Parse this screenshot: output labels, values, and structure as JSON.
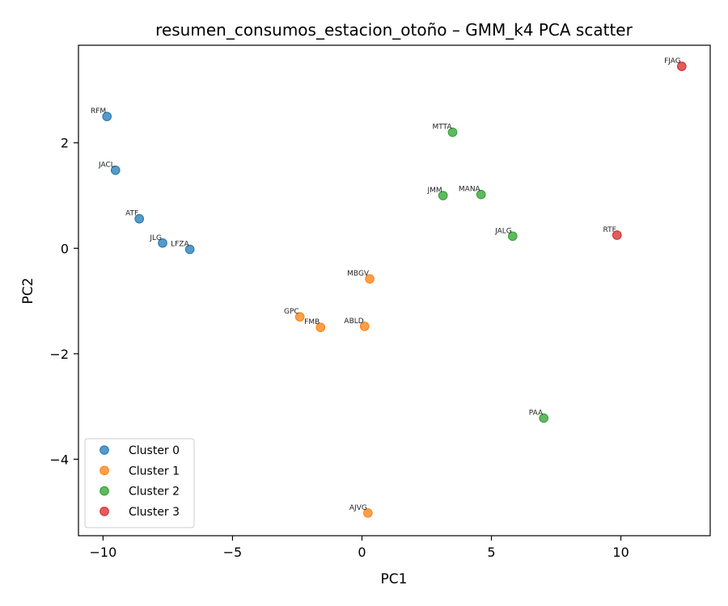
{
  "chart_data": {
    "type": "scatter",
    "title": "resumen_consumos_estacion_otoño – GMM_k4 PCA scatter",
    "xlabel": "PC1",
    "ylabel": "PC2",
    "xlim": [
      -10.95,
      13.45
    ],
    "ylim": [
      -5.45,
      3.85
    ],
    "xticks": [
      -10,
      -5,
      0,
      5,
      10
    ],
    "xtick_labels": [
      "−10",
      "−5",
      "0",
      "5",
      "10"
    ],
    "yticks": [
      -4,
      -2,
      0,
      2
    ],
    "ytick_labels": [
      "−4",
      "−2",
      "0",
      "2"
    ],
    "grid": false,
    "legend_position": "lower-left",
    "series": [
      {
        "name": "Cluster 0",
        "color": "#1f77b4",
        "points": [
          {
            "label": "RFM",
            "x": -9.85,
            "y": 2.5
          },
          {
            "label": "JACL",
            "x": -9.52,
            "y": 1.48
          },
          {
            "label": "ATF",
            "x": -8.6,
            "y": 0.56
          },
          {
            "label": "JLG",
            "x": -7.7,
            "y": 0.1
          },
          {
            "label": "LFZA",
            "x": -6.65,
            "y": -0.02
          }
        ]
      },
      {
        "name": "Cluster 1",
        "color": "#ff7f0e",
        "points": [
          {
            "label": "MBGV",
            "x": 0.3,
            "y": -0.58
          },
          {
            "label": "GPC",
            "x": -2.4,
            "y": -1.3
          },
          {
            "label": "FMB",
            "x": -1.6,
            "y": -1.5
          },
          {
            "label": "ABLD",
            "x": 0.1,
            "y": -1.48
          },
          {
            "label": "AJVG",
            "x": 0.23,
            "y": -5.02
          }
        ]
      },
      {
        "name": "Cluster 2",
        "color": "#2ca02c",
        "points": [
          {
            "label": "MTTA",
            "x": 3.5,
            "y": 2.2
          },
          {
            "label": "JMM",
            "x": 3.13,
            "y": 1.0
          },
          {
            "label": "MANA",
            "x": 4.6,
            "y": 1.02
          },
          {
            "label": "JALG",
            "x": 5.82,
            "y": 0.23
          },
          {
            "label": "PAA",
            "x": 7.02,
            "y": -3.22
          }
        ]
      },
      {
        "name": "Cluster 3",
        "color": "#d62728",
        "points": [
          {
            "label": "FJAG",
            "x": 12.35,
            "y": 3.45
          },
          {
            "label": "RTF",
            "x": 9.85,
            "y": 0.25
          }
        ]
      }
    ]
  }
}
